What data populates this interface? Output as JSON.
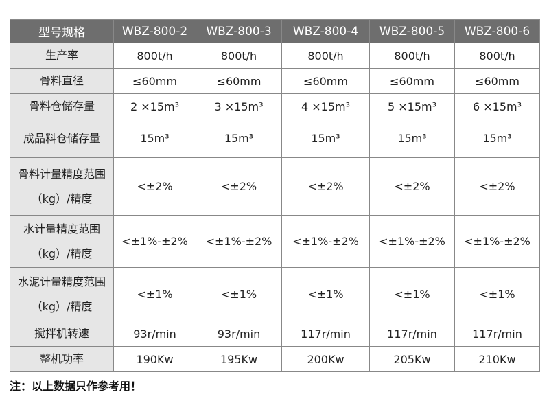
{
  "table": {
    "header": [
      "型号规格",
      "WBZ-800-2",
      "WBZ-800-3",
      "WBZ-800-4",
      "WBZ-800-5",
      "WBZ-800-6"
    ],
    "rows": [
      {
        "label": [
          "生产率"
        ],
        "cells": [
          "800t/h",
          "800t/h",
          "800t/h",
          "800t/h",
          "800t/h"
        ]
      },
      {
        "label": [
          "骨料直径"
        ],
        "cells": [
          "≤60mm",
          "≤60mm",
          "≤60mm",
          "≤60mm",
          "≤60mm"
        ]
      },
      {
        "label": [
          "骨料仓储存量"
        ],
        "cells": [
          "2 ×15m³",
          "3 ×15m³",
          "4 ×15m³",
          "5 ×15m³",
          "6 ×15m³"
        ]
      },
      {
        "label": [
          "成品料仓储存量"
        ],
        "cells": [
          "15m³",
          "15m³",
          "15m³",
          "15m³",
          "15m³"
        ]
      },
      {
        "label": [
          "骨料计量精度范围",
          "（kg）/精度"
        ],
        "cells": [
          "<±2%",
          "<±2%",
          "<±2%",
          "<±2%",
          "<±2%"
        ]
      },
      {
        "label": [
          "水计量精度范围",
          "（kg）/精度"
        ],
        "cells": [
          "<±1%-±2%",
          "<±1%-±2%",
          "<±1%-±2%",
          "<±1%-±2%",
          "<±1%-±2%"
        ]
      },
      {
        "label": [
          "水泥计量精度范围",
          "（kg）/精度"
        ],
        "cells": [
          "<±1%",
          "<±1%",
          "<±1%",
          "<±1%",
          "<±1%"
        ]
      },
      {
        "label": [
          "搅拌机转速"
        ],
        "cells": [
          "93r/min",
          "93r/min",
          "117r/min",
          "117r/min",
          "117r/min"
        ]
      },
      {
        "label": [
          "整机功率"
        ],
        "cells": [
          "190Kw",
          "195Kw",
          "200Kw",
          "205Kw",
          "210Kw"
        ]
      }
    ]
  },
  "note": "注：以上数据只作参考用！"
}
